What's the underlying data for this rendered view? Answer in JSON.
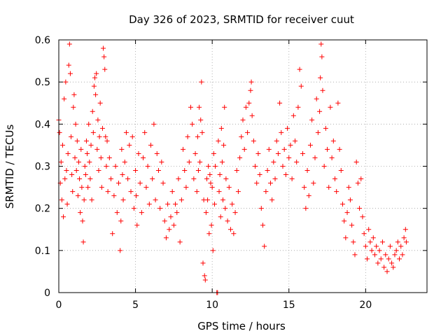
{
  "chart_data": {
    "type": "scatter",
    "title": "Day 326 of 2023, SRMTID for receiver cuut",
    "xlabel": "GPS time / hours",
    "ylabel": "SRMTID / TECUs",
    "xlim": [
      0,
      24
    ],
    "ylim": [
      0,
      0.6
    ],
    "x_ticks": [
      0,
      5,
      10,
      15,
      20
    ],
    "x_tick_labels": [
      "0",
      "5",
      "10",
      "15",
      "20"
    ],
    "y_ticks": [
      0,
      0.1,
      0.2,
      0.3,
      0.4,
      0.5,
      0.6
    ],
    "y_tick_labels": [
      "0",
      "0.1",
      "0.2",
      "0.3",
      "0.4",
      "0.5",
      "0.6"
    ],
    "grid": true,
    "marker": "+",
    "series": [
      {
        "name": "SRMTID",
        "color": "#ff0000",
        "points": [
          [
            0.0,
            0.41
          ],
          [
            0.05,
            0.38
          ],
          [
            0.1,
            0.26
          ],
          [
            0.15,
            0.31
          ],
          [
            0.2,
            0.22
          ],
          [
            0.25,
            0.35
          ],
          [
            0.3,
            0.18
          ],
          [
            0.35,
            0.46
          ],
          [
            0.4,
            0.27
          ],
          [
            0.45,
            0.5
          ],
          [
            0.5,
            0.29
          ],
          [
            0.55,
            0.21
          ],
          [
            0.6,
            0.33
          ],
          [
            0.65,
            0.54
          ],
          [
            0.7,
            0.59
          ],
          [
            0.75,
            0.52
          ],
          [
            0.8,
            0.37
          ],
          [
            0.85,
            0.28
          ],
          [
            0.9,
            0.24
          ],
          [
            0.95,
            0.44
          ],
          [
            1.0,
            0.47
          ],
          [
            1.05,
            0.32
          ],
          [
            1.1,
            0.4
          ],
          [
            1.15,
            0.29
          ],
          [
            1.2,
            0.36
          ],
          [
            1.25,
            0.23
          ],
          [
            1.3,
            0.31
          ],
          [
            1.35,
            0.27
          ],
          [
            1.4,
            0.19
          ],
          [
            1.45,
            0.34
          ],
          [
            1.5,
            0.25
          ],
          [
            1.55,
            0.17
          ],
          [
            1.6,
            0.12
          ],
          [
            1.65,
            0.22
          ],
          [
            1.7,
            0.3
          ],
          [
            1.75,
            0.28
          ],
          [
            1.8,
            0.36
          ],
          [
            1.85,
            0.33
          ],
          [
            1.9,
            0.25
          ],
          [
            1.95,
            0.4
          ],
          [
            2.0,
            0.31
          ],
          [
            2.05,
            0.27
          ],
          [
            2.1,
            0.35
          ],
          [
            2.15,
            0.22
          ],
          [
            2.2,
            0.43
          ],
          [
            2.25,
            0.38
          ],
          [
            2.3,
            0.49
          ],
          [
            2.35,
            0.51
          ],
          [
            2.4,
            0.47
          ],
          [
            2.45,
            0.52
          ],
          [
            2.5,
            0.34
          ],
          [
            2.55,
            0.41
          ],
          [
            2.6,
            0.29
          ],
          [
            2.65,
            0.37
          ],
          [
            2.7,
            0.45
          ],
          [
            2.75,
            0.32
          ],
          [
            2.8,
            0.25
          ],
          [
            2.85,
            0.39
          ],
          [
            2.9,
            0.58
          ],
          [
            2.95,
            0.56
          ],
          [
            3.0,
            0.53
          ],
          [
            3.05,
            0.37
          ],
          [
            3.1,
            0.3
          ],
          [
            3.15,
            0.36
          ],
          [
            3.2,
            0.24
          ],
          [
            3.3,
            0.32
          ],
          [
            3.4,
            0.27
          ],
          [
            3.5,
            0.14
          ],
          [
            3.6,
            0.23
          ],
          [
            3.7,
            0.3
          ],
          [
            3.8,
            0.19
          ],
          [
            3.9,
            0.26
          ],
          [
            4.0,
            0.1
          ],
          [
            4.05,
            0.17
          ],
          [
            4.1,
            0.34
          ],
          [
            4.15,
            0.28
          ],
          [
            4.2,
            0.22
          ],
          [
            4.3,
            0.31
          ],
          [
            4.4,
            0.38
          ],
          [
            4.5,
            0.27
          ],
          [
            4.6,
            0.35
          ],
          [
            4.7,
            0.24
          ],
          [
            4.8,
            0.37
          ],
          [
            4.9,
            0.2
          ],
          [
            5.0,
            0.29
          ],
          [
            5.05,
            0.23
          ],
          [
            5.1,
            0.16
          ],
          [
            5.2,
            0.33
          ],
          [
            5.3,
            0.26
          ],
          [
            5.4,
            0.19
          ],
          [
            5.5,
            0.32
          ],
          [
            5.6,
            0.38
          ],
          [
            5.7,
            0.25
          ],
          [
            5.8,
            0.3
          ],
          [
            5.9,
            0.21
          ],
          [
            6.0,
            0.35
          ],
          [
            6.1,
            0.27
          ],
          [
            6.2,
            0.4
          ],
          [
            6.3,
            0.22
          ],
          [
            6.4,
            0.33
          ],
          [
            6.5,
            0.29
          ],
          [
            6.6,
            0.2
          ],
          [
            6.7,
            0.31
          ],
          [
            6.8,
            0.26
          ],
          [
            6.9,
            0.17
          ],
          [
            7.0,
            0.13
          ],
          [
            7.1,
            0.21
          ],
          [
            7.2,
            0.15
          ],
          [
            7.3,
            0.18
          ],
          [
            7.4,
            0.24
          ],
          [
            7.5,
            0.16
          ],
          [
            7.6,
            0.21
          ],
          [
            7.7,
            0.19
          ],
          [
            7.8,
            0.27
          ],
          [
            7.9,
            0.12
          ],
          [
            8.0,
            0.22
          ],
          [
            8.1,
            0.34
          ],
          [
            8.2,
            0.29
          ],
          [
            8.3,
            0.25
          ],
          [
            8.4,
            0.37
          ],
          [
            8.5,
            0.31
          ],
          [
            8.6,
            0.44
          ],
          [
            8.7,
            0.4
          ],
          [
            8.8,
            0.27
          ],
          [
            8.9,
            0.33
          ],
          [
            9.0,
            0.24
          ],
          [
            9.05,
            0.37
          ],
          [
            9.1,
            0.29
          ],
          [
            9.15,
            0.44
          ],
          [
            9.2,
            0.31
          ],
          [
            9.25,
            0.41
          ],
          [
            9.3,
            0.5
          ],
          [
            9.35,
            0.38
          ],
          [
            9.4,
            0.07
          ],
          [
            9.45,
            0.22
          ],
          [
            9.5,
            0.04
          ],
          [
            9.55,
            0.03
          ],
          [
            9.6,
            0.19
          ],
          [
            9.65,
            0.27
          ],
          [
            9.7,
            0.22
          ],
          [
            9.75,
            0.3
          ],
          [
            9.8,
            0.14
          ],
          [
            9.85,
            0.28
          ],
          [
            9.9,
            0.26
          ],
          [
            9.95,
            0.16
          ],
          [
            10.0,
            0.25
          ],
          [
            10.05,
            0.1
          ],
          [
            10.1,
            0.33
          ],
          [
            10.15,
            0.21
          ],
          [
            10.2,
            0.3
          ],
          [
            10.3,
            0.0
          ],
          [
            10.35,
            0.0
          ],
          [
            10.4,
            0.36
          ],
          [
            10.45,
            0.24
          ],
          [
            10.5,
            0.28
          ],
          [
            10.55,
            0.18
          ],
          [
            10.6,
            0.39
          ],
          [
            10.65,
            0.31
          ],
          [
            10.7,
            0.22
          ],
          [
            10.75,
            0.35
          ],
          [
            10.8,
            0.44
          ],
          [
            10.85,
            0.2
          ],
          [
            10.9,
            0.27
          ],
          [
            11.0,
            0.17
          ],
          [
            11.1,
            0.25
          ],
          [
            11.2,
            0.15
          ],
          [
            11.3,
            0.21
          ],
          [
            11.4,
            0.14
          ],
          [
            11.5,
            0.19
          ],
          [
            11.6,
            0.29
          ],
          [
            11.7,
            0.24
          ],
          [
            11.8,
            0.32
          ],
          [
            11.9,
            0.37
          ],
          [
            12.0,
            0.41
          ],
          [
            12.1,
            0.34
          ],
          [
            12.2,
            0.44
          ],
          [
            12.3,
            0.38
          ],
          [
            12.4,
            0.45
          ],
          [
            12.5,
            0.48
          ],
          [
            12.55,
            0.5
          ],
          [
            12.6,
            0.42
          ],
          [
            12.7,
            0.36
          ],
          [
            12.8,
            0.3
          ],
          [
            12.9,
            0.26
          ],
          [
            13.0,
            0.33
          ],
          [
            13.1,
            0.28
          ],
          [
            13.2,
            0.2
          ],
          [
            13.3,
            0.16
          ],
          [
            13.4,
            0.11
          ],
          [
            13.5,
            0.24
          ],
          [
            13.6,
            0.29
          ],
          [
            13.7,
            0.34
          ],
          [
            13.8,
            0.26
          ],
          [
            13.9,
            0.22
          ],
          [
            14.0,
            0.31
          ],
          [
            14.1,
            0.27
          ],
          [
            14.2,
            0.36
          ],
          [
            14.3,
            0.33
          ],
          [
            14.4,
            0.45
          ],
          [
            14.5,
            0.38
          ],
          [
            14.6,
            0.3
          ],
          [
            14.7,
            0.34
          ],
          [
            14.8,
            0.28
          ],
          [
            14.9,
            0.39
          ],
          [
            15.0,
            0.32
          ],
          [
            15.1,
            0.35
          ],
          [
            15.2,
            0.27
          ],
          [
            15.3,
            0.42
          ],
          [
            15.4,
            0.36
          ],
          [
            15.5,
            0.31
          ],
          [
            15.6,
            0.44
          ],
          [
            15.7,
            0.53
          ],
          [
            15.8,
            0.49
          ],
          [
            15.9,
            0.33
          ],
          [
            16.0,
            0.25
          ],
          [
            16.1,
            0.2
          ],
          [
            16.2,
            0.29
          ],
          [
            16.3,
            0.23
          ],
          [
            16.4,
            0.35
          ],
          [
            16.5,
            0.41
          ],
          [
            16.6,
            0.26
          ],
          [
            16.7,
            0.32
          ],
          [
            16.8,
            0.46
          ],
          [
            16.9,
            0.38
          ],
          [
            17.0,
            0.43
          ],
          [
            17.05,
            0.51
          ],
          [
            17.1,
            0.59
          ],
          [
            17.15,
            0.56
          ],
          [
            17.2,
            0.48
          ],
          [
            17.3,
            0.3
          ],
          [
            17.4,
            0.39
          ],
          [
            17.5,
            0.34
          ],
          [
            17.6,
            0.25
          ],
          [
            17.7,
            0.44
          ],
          [
            17.8,
            0.32
          ],
          [
            17.9,
            0.36
          ],
          [
            18.0,
            0.27
          ],
          [
            18.1,
            0.24
          ],
          [
            18.2,
            0.45
          ],
          [
            18.3,
            0.34
          ],
          [
            18.4,
            0.29
          ],
          [
            18.5,
            0.21
          ],
          [
            18.6,
            0.17
          ],
          [
            18.7,
            0.13
          ],
          [
            18.8,
            0.19
          ],
          [
            18.9,
            0.25
          ],
          [
            19.0,
            0.22
          ],
          [
            19.1,
            0.16
          ],
          [
            19.2,
            0.12
          ],
          [
            19.3,
            0.09
          ],
          [
            19.4,
            0.31
          ],
          [
            19.5,
            0.26
          ],
          [
            19.6,
            0.2
          ],
          [
            19.7,
            0.27
          ],
          [
            19.8,
            0.18
          ],
          [
            19.9,
            0.14
          ],
          [
            20.0,
            0.11
          ],
          [
            20.1,
            0.08
          ],
          [
            20.2,
            0.15
          ],
          [
            20.3,
            0.12
          ],
          [
            20.4,
            0.1
          ],
          [
            20.5,
            0.13
          ],
          [
            20.6,
            0.09
          ],
          [
            20.7,
            0.11
          ],
          [
            20.8,
            0.07
          ],
          [
            20.9,
            0.1
          ],
          [
            21.0,
            0.08
          ],
          [
            21.1,
            0.12
          ],
          [
            21.2,
            0.06
          ],
          [
            21.3,
            0.09
          ],
          [
            21.4,
            0.05
          ],
          [
            21.5,
            0.08
          ],
          [
            21.6,
            0.11
          ],
          [
            21.7,
            0.07
          ],
          [
            21.8,
            0.06
          ],
          [
            21.9,
            0.09
          ],
          [
            22.0,
            0.1
          ],
          [
            22.1,
            0.12
          ],
          [
            22.2,
            0.08
          ],
          [
            22.3,
            0.11
          ],
          [
            22.4,
            0.09
          ],
          [
            22.5,
            0.13
          ],
          [
            22.6,
            0.15
          ],
          [
            22.65,
            0.12
          ]
        ]
      }
    ]
  }
}
